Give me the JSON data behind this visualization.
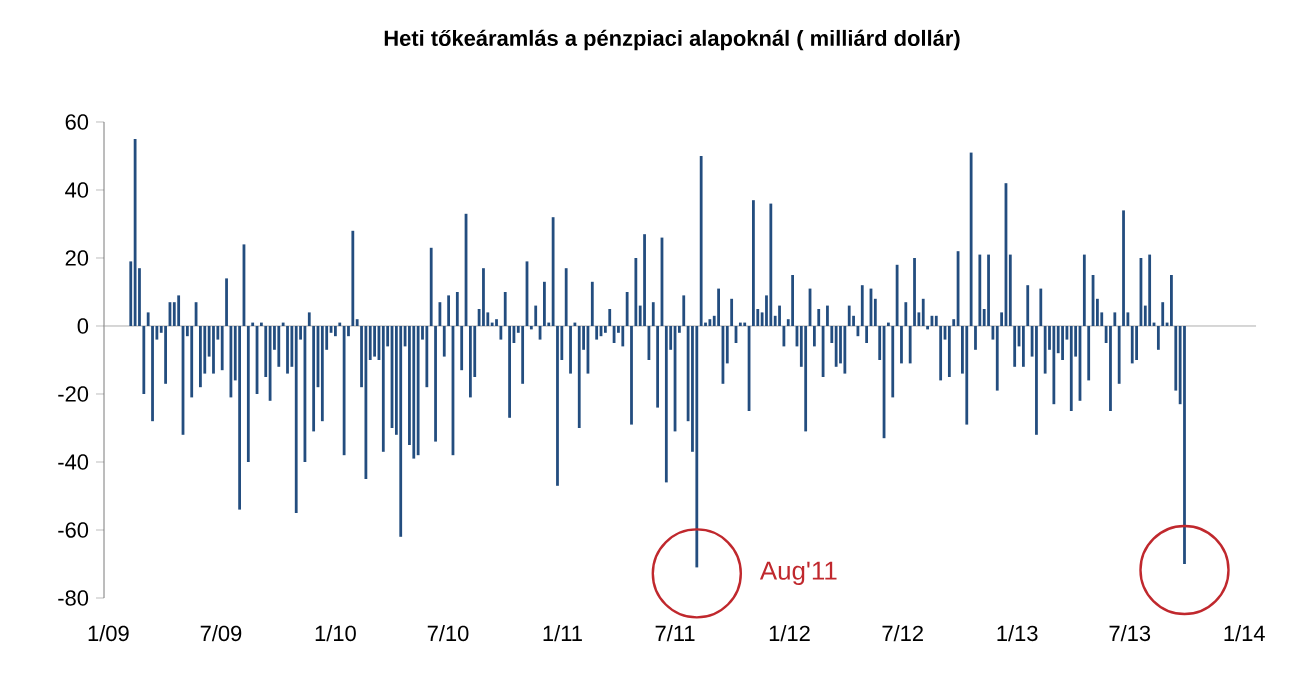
{
  "chart_data": {
    "type": "bar",
    "title": "Heti tőkeáramlás a pénzpiaci alapoknál ( milliárd dollár)",
    "x": [
      "2009-02-06",
      "2009-02-13",
      "2009-02-20",
      "2009-02-27",
      "2009-03-06",
      "2009-03-13",
      "2009-03-20",
      "2009-03-27",
      "2009-04-03",
      "2009-04-10",
      "2009-04-17",
      "2009-04-24",
      "2009-05-01",
      "2009-05-08",
      "2009-05-15",
      "2009-05-22",
      "2009-05-29",
      "2009-06-05",
      "2009-06-12",
      "2009-06-19",
      "2009-06-26",
      "2009-07-03",
      "2009-07-10",
      "2009-07-17",
      "2009-07-24",
      "2009-07-31",
      "2009-08-07",
      "2009-08-14",
      "2009-08-21",
      "2009-08-28",
      "2009-09-04",
      "2009-09-11",
      "2009-09-18",
      "2009-09-25",
      "2009-10-02",
      "2009-10-09",
      "2009-10-16",
      "2009-10-23",
      "2009-10-30",
      "2009-11-06",
      "2009-11-13",
      "2009-11-20",
      "2009-11-27",
      "2009-12-04",
      "2009-12-11",
      "2009-12-18",
      "2009-12-25",
      "2010-01-01",
      "2010-01-08",
      "2010-01-15",
      "2010-01-22",
      "2010-01-29",
      "2010-02-05",
      "2010-02-12",
      "2010-02-19",
      "2010-02-26",
      "2010-03-05",
      "2010-03-12",
      "2010-03-19",
      "2010-03-26",
      "2010-04-02",
      "2010-04-09",
      "2010-04-16",
      "2010-04-23",
      "2010-04-30",
      "2010-05-07",
      "2010-05-14",
      "2010-05-21",
      "2010-05-28",
      "2010-06-04",
      "2010-06-11",
      "2010-06-18",
      "2010-06-25",
      "2010-07-02",
      "2010-07-09",
      "2010-07-16",
      "2010-07-23",
      "2010-07-30",
      "2010-08-06",
      "2010-08-13",
      "2010-08-20",
      "2010-08-27",
      "2010-09-03",
      "2010-09-10",
      "2010-09-17",
      "2010-09-24",
      "2010-10-01",
      "2010-10-08",
      "2010-10-15",
      "2010-10-22",
      "2010-10-29",
      "2010-11-05",
      "2010-11-12",
      "2010-11-19",
      "2010-11-26",
      "2010-12-03",
      "2010-12-10",
      "2010-12-17",
      "2010-12-24",
      "2010-12-31",
      "2011-01-07",
      "2011-01-14",
      "2011-01-21",
      "2011-01-28",
      "2011-02-04",
      "2011-02-11",
      "2011-02-18",
      "2011-02-25",
      "2011-03-04",
      "2011-03-11",
      "2011-03-18",
      "2011-03-25",
      "2011-04-01",
      "2011-04-08",
      "2011-04-15",
      "2011-04-22",
      "2011-04-29",
      "2011-05-06",
      "2011-05-13",
      "2011-05-20",
      "2011-05-27",
      "2011-06-03",
      "2011-06-10",
      "2011-06-17",
      "2011-06-24",
      "2011-07-01",
      "2011-07-08",
      "2011-07-15",
      "2011-07-22",
      "2011-07-29",
      "2011-08-05",
      "2011-08-12",
      "2011-08-19",
      "2011-08-26",
      "2011-09-02",
      "2011-09-09",
      "2011-09-16",
      "2011-09-23",
      "2011-09-30",
      "2011-10-07",
      "2011-10-14",
      "2011-10-21",
      "2011-10-28",
      "2011-11-04",
      "2011-11-11",
      "2011-11-18",
      "2011-11-25",
      "2011-12-02",
      "2011-12-09",
      "2011-12-16",
      "2011-12-23",
      "2011-12-30",
      "2012-01-06",
      "2012-01-13",
      "2012-01-20",
      "2012-01-27",
      "2012-02-03",
      "2012-02-10",
      "2012-02-17",
      "2012-02-24",
      "2012-03-02",
      "2012-03-09",
      "2012-03-16",
      "2012-03-23",
      "2012-03-30",
      "2012-04-06",
      "2012-04-13",
      "2012-04-20",
      "2012-04-27",
      "2012-05-04",
      "2012-05-11",
      "2012-05-18",
      "2012-05-25",
      "2012-06-01",
      "2012-06-08",
      "2012-06-15",
      "2012-06-22",
      "2012-06-29",
      "2012-07-06",
      "2012-07-13",
      "2012-07-20",
      "2012-07-27",
      "2012-08-03",
      "2012-08-10",
      "2012-08-17",
      "2012-08-24",
      "2012-08-31",
      "2012-09-07",
      "2012-09-14",
      "2012-09-21",
      "2012-09-28",
      "2012-10-05",
      "2012-10-12",
      "2012-10-19",
      "2012-10-26",
      "2012-11-02",
      "2012-11-09",
      "2012-11-16",
      "2012-11-23",
      "2012-11-30",
      "2012-12-07",
      "2012-12-14",
      "2012-12-21",
      "2012-12-28",
      "2013-01-04",
      "2013-01-11",
      "2013-01-18",
      "2013-01-25",
      "2013-02-01",
      "2013-02-08",
      "2013-02-15",
      "2013-02-22",
      "2013-03-01",
      "2013-03-08",
      "2013-03-15",
      "2013-03-22",
      "2013-03-29",
      "2013-04-05",
      "2013-04-12",
      "2013-04-19",
      "2013-04-26",
      "2013-05-03",
      "2013-05-10",
      "2013-05-17",
      "2013-05-24",
      "2013-05-31",
      "2013-06-07",
      "2013-06-14",
      "2013-06-21",
      "2013-06-28",
      "2013-07-05",
      "2013-07-12",
      "2013-07-19",
      "2013-07-26",
      "2013-08-02",
      "2013-08-09",
      "2013-08-16",
      "2013-08-23",
      "2013-08-30",
      "2013-09-06",
      "2013-09-13",
      "2013-09-20",
      "2013-09-27"
    ],
    "values": [
      19,
      55,
      17,
      -20,
      4,
      -28,
      -4,
      -2,
      -17,
      7,
      7,
      9,
      -32,
      -3,
      -21,
      7,
      -18,
      -14,
      -9,
      -14,
      -4,
      -13,
      14,
      -21,
      -16,
      -54,
      24,
      -40,
      1,
      -20,
      1,
      -15,
      -22,
      -7,
      -12,
      1,
      -14,
      -12,
      -55,
      -4,
      -40,
      4,
      -31,
      -18,
      -28,
      -7,
      -2,
      -3,
      1,
      -38,
      -3,
      28,
      2,
      -18,
      -45,
      -10,
      -9,
      -10,
      -37,
      -6,
      -30,
      -32,
      -62,
      -6,
      -35,
      -39,
      -38,
      -4,
      -18,
      23,
      -34,
      7,
      -9,
      9,
      -38,
      10,
      -13,
      33,
      -21,
      -15,
      5,
      17,
      4,
      1,
      2,
      -4,
      10,
      -27,
      -5,
      -2,
      -17,
      19,
      -1,
      6,
      -4,
      13,
      1,
      32,
      -47,
      -10,
      17,
      -14,
      1,
      -30,
      -7,
      -14,
      13,
      -4,
      -3,
      -2,
      5,
      -5,
      -2,
      -6,
      10,
      -29,
      20,
      6,
      27,
      -10,
      7,
      -24,
      26,
      -46,
      -7,
      -31,
      -2,
      9,
      -28,
      -37,
      -71,
      50,
      1,
      2,
      3,
      11,
      -17,
      -11,
      8,
      -5,
      1,
      1,
      -25,
      37,
      5,
      4,
      9,
      36,
      3,
      6,
      -6,
      2,
      15,
      -6,
      -12,
      -31,
      11,
      -6,
      5,
      -15,
      6,
      -5,
      -12,
      -11,
      -14,
      6,
      3,
      -3,
      12,
      -5,
      11,
      8,
      -10,
      -33,
      1,
      -21,
      18,
      -11,
      7,
      -11,
      20,
      4,
      8,
      -1,
      3,
      3,
      -16,
      -4,
      -15,
      2,
      22,
      -14,
      -29,
      51,
      -7,
      21,
      5,
      21,
      -4,
      -19,
      4,
      42,
      21,
      -12,
      -6,
      -12,
      12,
      -9,
      -32,
      11,
      -14,
      -7,
      -23,
      -8,
      -10,
      -4,
      -25,
      -9,
      -22,
      21,
      -16,
      15,
      8,
      4,
      -5,
      -25,
      4,
      -17,
      34,
      4,
      -11,
      -10,
      20,
      6,
      21,
      1,
      -7,
      7,
      1,
      15,
      -19,
      -23,
      -70
    ],
    "color": "#234d7f",
    "xlim": [
      "2008-12-25",
      "2014-01-20"
    ],
    "xticks": [
      {
        "value": "2009-01-01",
        "label": "1/09"
      },
      {
        "value": "2009-07-01",
        "label": "7/09"
      },
      {
        "value": "2010-01-01",
        "label": "1/10"
      },
      {
        "value": "2010-07-01",
        "label": "7/10"
      },
      {
        "value": "2011-01-01",
        "label": "1/11"
      },
      {
        "value": "2011-07-01",
        "label": "7/11"
      },
      {
        "value": "2012-01-01",
        "label": "1/12"
      },
      {
        "value": "2012-07-01",
        "label": "7/12"
      },
      {
        "value": "2013-01-01",
        "label": "1/13"
      },
      {
        "value": "2013-07-01",
        "label": "7/13"
      },
      {
        "value": "2014-01-01",
        "label": "1/14"
      }
    ],
    "ylim": [
      -80,
      60
    ],
    "yticks": [
      -80,
      -60,
      -40,
      -20,
      0,
      20,
      40,
      60
    ],
    "annotations": [
      {
        "text": "Aug'11",
        "x": "2011-08-05",
        "y": -71
      }
    ]
  }
}
